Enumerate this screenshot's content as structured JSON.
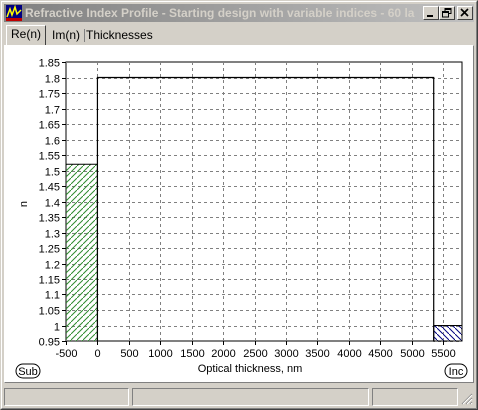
{
  "window": {
    "title": "Refractive Index Profile - Starting design with variable indices - 60 la...",
    "minimize_label": "minimize",
    "restore_label": "restore",
    "close_label": "close"
  },
  "tabs": [
    {
      "label": "Re(n)",
      "active": true
    },
    {
      "label": "Im(n)",
      "active": false
    },
    {
      "label": "Thicknesses",
      "active": false
    }
  ],
  "chart_data": {
    "type": "area",
    "xlabel": "Optical thickness, nm",
    "ylabel": "n",
    "xlim": [
      -500,
      5800
    ],
    "ylim": [
      0.95,
      1.85
    ],
    "x_ticks": [
      -500,
      0,
      500,
      1000,
      1500,
      2000,
      2500,
      3000,
      3500,
      4000,
      4500,
      5000,
      5500
    ],
    "y_ticks": [
      0.95,
      1,
      1.05,
      1.1,
      1.15,
      1.2,
      1.25,
      1.3,
      1.35,
      1.4,
      1.45,
      1.5,
      1.55,
      1.6,
      1.65,
      1.7,
      1.75,
      1.8,
      1.85
    ],
    "grid": true,
    "substrate": {
      "label": "Sub",
      "x": [
        -500,
        0
      ],
      "n": 1.52,
      "color": "#2e8b2e"
    },
    "film": {
      "x": [
        0,
        5350
      ],
      "n": 1.8
    },
    "incident": {
      "label": "Inc",
      "x": [
        5350,
        5800
      ],
      "n": 1.0,
      "color": "#000080"
    }
  },
  "colors": {
    "titlebar_start": "#808080",
    "titlebar_end": "#c0c0c0",
    "window_face": "#d4d0c8",
    "plot_background": "#ffffff",
    "grid": "#808080"
  }
}
